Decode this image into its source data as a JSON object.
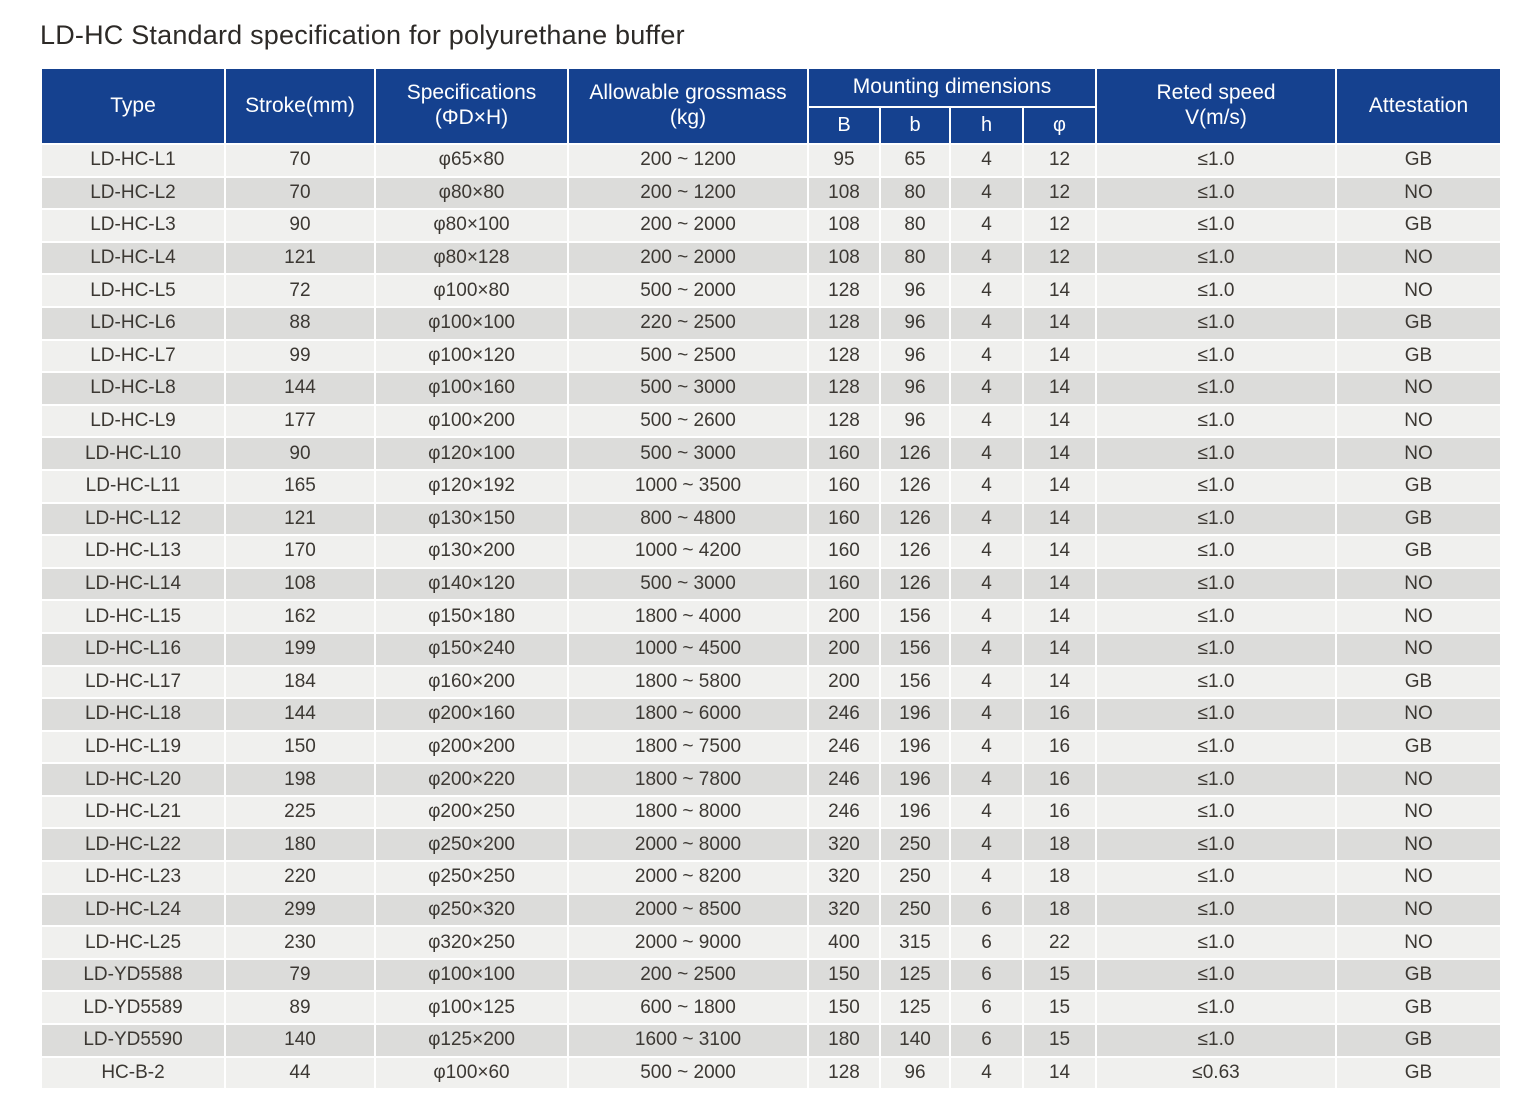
{
  "title": "LD-HC Standard specification for polyurethane buffer",
  "colors": {
    "header_bg": "#15418f",
    "header_text": "#ffffff",
    "row_light": "#f0f0ee",
    "row_dark": "#dcdcda",
    "cell_text": "#3c3833"
  },
  "table": {
    "headers": {
      "type": "Type",
      "stroke": "Stroke(mm)",
      "specifications_line1": "Specifications",
      "specifications_line2": "(ΦD×H)",
      "grossmass_line1": "Allowable grossmass",
      "grossmass_line2": "(kg)",
      "mounting": "Mounting dimensions",
      "sub": [
        "B",
        "b",
        "h",
        "φ"
      ],
      "speed_line1": "Reted speed",
      "speed_line2": "V(m/s)",
      "attestation": "Attestation"
    },
    "columns": [
      "type",
      "stroke",
      "specifications",
      "grossmass",
      "B",
      "b",
      "h",
      "phi",
      "speed",
      "attestation"
    ],
    "rows": [
      [
        "LD-HC-L1",
        "70",
        "φ65×80",
        "200 ~ 1200",
        "95",
        "65",
        "4",
        "12",
        "≤1.0",
        "GB"
      ],
      [
        "LD-HC-L2",
        "70",
        "φ80×80",
        "200 ~ 1200",
        "108",
        "80",
        "4",
        "12",
        "≤1.0",
        "NO"
      ],
      [
        "LD-HC-L3",
        "90",
        "φ80×100",
        "200 ~ 2000",
        "108",
        "80",
        "4",
        "12",
        "≤1.0",
        "GB"
      ],
      [
        "LD-HC-L4",
        "121",
        "φ80×128",
        "200 ~ 2000",
        "108",
        "80",
        "4",
        "12",
        "≤1.0",
        "NO"
      ],
      [
        "LD-HC-L5",
        "72",
        "φ100×80",
        "500 ~ 2000",
        "128",
        "96",
        "4",
        "14",
        "≤1.0",
        "NO"
      ],
      [
        "LD-HC-L6",
        "88",
        "φ100×100",
        "220 ~ 2500",
        "128",
        "96",
        "4",
        "14",
        "≤1.0",
        "GB"
      ],
      [
        "LD-HC-L7",
        "99",
        "φ100×120",
        "500 ~ 2500",
        "128",
        "96",
        "4",
        "14",
        "≤1.0",
        "GB"
      ],
      [
        "LD-HC-L8",
        "144",
        "φ100×160",
        "500 ~ 3000",
        "128",
        "96",
        "4",
        "14",
        "≤1.0",
        "NO"
      ],
      [
        "LD-HC-L9",
        "177",
        "φ100×200",
        "500 ~ 2600",
        "128",
        "96",
        "4",
        "14",
        "≤1.0",
        "NO"
      ],
      [
        "LD-HC-L10",
        "90",
        "φ120×100",
        "500 ~ 3000",
        "160",
        "126",
        "4",
        "14",
        "≤1.0",
        "NO"
      ],
      [
        "LD-HC-L11",
        "165",
        "φ120×192",
        "1000 ~ 3500",
        "160",
        "126",
        "4",
        "14",
        "≤1.0",
        "GB"
      ],
      [
        "LD-HC-L12",
        "121",
        "φ130×150",
        "800 ~ 4800",
        "160",
        "126",
        "4",
        "14",
        "≤1.0",
        "GB"
      ],
      [
        "LD-HC-L13",
        "170",
        "φ130×200",
        "1000 ~ 4200",
        "160",
        "126",
        "4",
        "14",
        "≤1.0",
        "GB"
      ],
      [
        "LD-HC-L14",
        "108",
        "φ140×120",
        "500 ~ 3000",
        "160",
        "126",
        "4",
        "14",
        "≤1.0",
        "NO"
      ],
      [
        "LD-HC-L15",
        "162",
        "φ150×180",
        "1800 ~ 4000",
        "200",
        "156",
        "4",
        "14",
        "≤1.0",
        "NO"
      ],
      [
        "LD-HC-L16",
        "199",
        "φ150×240",
        "1000 ~ 4500",
        "200",
        "156",
        "4",
        "14",
        "≤1.0",
        "NO"
      ],
      [
        "LD-HC-L17",
        "184",
        "φ160×200",
        "1800 ~ 5800",
        "200",
        "156",
        "4",
        "14",
        "≤1.0",
        "GB"
      ],
      [
        "LD-HC-L18",
        "144",
        "φ200×160",
        "1800 ~ 6000",
        "246",
        "196",
        "4",
        "16",
        "≤1.0",
        "NO"
      ],
      [
        "LD-HC-L19",
        "150",
        "φ200×200",
        "1800 ~ 7500",
        "246",
        "196",
        "4",
        "16",
        "≤1.0",
        "GB"
      ],
      [
        "LD-HC-L20",
        "198",
        "φ200×220",
        "1800 ~ 7800",
        "246",
        "196",
        "4",
        "16",
        "≤1.0",
        "NO"
      ],
      [
        "LD-HC-L21",
        "225",
        "φ200×250",
        "1800 ~ 8000",
        "246",
        "196",
        "4",
        "16",
        "≤1.0",
        "NO"
      ],
      [
        "LD-HC-L22",
        "180",
        "φ250×200",
        "2000 ~ 8000",
        "320",
        "250",
        "4",
        "18",
        "≤1.0",
        "NO"
      ],
      [
        "LD-HC-L23",
        "220",
        "φ250×250",
        "2000 ~ 8200",
        "320",
        "250",
        "4",
        "18",
        "≤1.0",
        "NO"
      ],
      [
        "LD-HC-L24",
        "299",
        "φ250×320",
        "2000 ~ 8500",
        "320",
        "250",
        "6",
        "18",
        "≤1.0",
        "NO"
      ],
      [
        "LD-HC-L25",
        "230",
        "φ320×250",
        "2000 ~ 9000",
        "400",
        "315",
        "6",
        "22",
        "≤1.0",
        "NO"
      ],
      [
        "LD-YD5588",
        "79",
        "φ100×100",
        "200 ~ 2500",
        "150",
        "125",
        "6",
        "15",
        "≤1.0",
        "GB"
      ],
      [
        "LD-YD5589",
        "89",
        "φ100×125",
        "600 ~ 1800",
        "150",
        "125",
        "6",
        "15",
        "≤1.0",
        "GB"
      ],
      [
        "LD-YD5590",
        "140",
        "φ125×200",
        "1600 ~ 3100",
        "180",
        "140",
        "6",
        "15",
        "≤1.0",
        "GB"
      ],
      [
        "HC-B-2",
        "44",
        "φ100×60",
        "500 ~ 2000",
        "128",
        "96",
        "4",
        "14",
        "≤0.63",
        "GB"
      ]
    ]
  }
}
